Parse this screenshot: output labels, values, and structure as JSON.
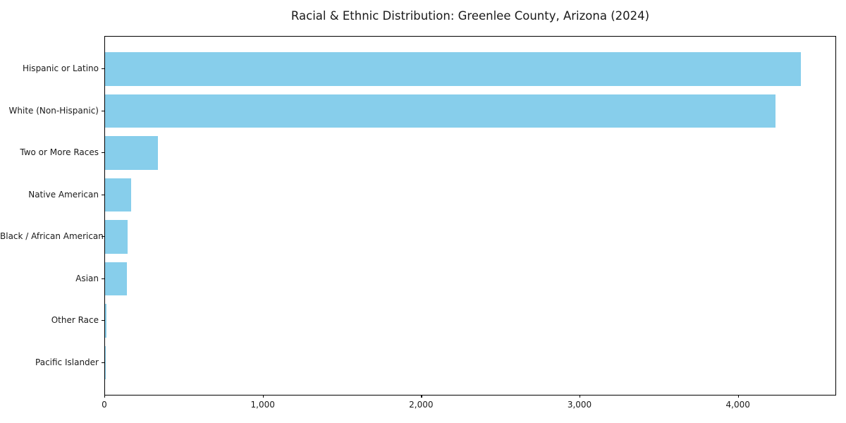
{
  "chart_data": {
    "type": "bar",
    "orientation": "horizontal",
    "title": "Racial & Ethnic Distribution: Greenlee County, Arizona (2024)",
    "categories": [
      "Hispanic or Latino",
      "White (Non-Hispanic)",
      "Two or More Races",
      "Native American",
      "Black / African American",
      "Asian",
      "Other Race",
      "Pacific Islander"
    ],
    "values": [
      4400,
      4240,
      335,
      167,
      141,
      137,
      8,
      2
    ],
    "xlabel": "",
    "ylabel": "",
    "xlim": [
      0,
      4620
    ],
    "xticks": [
      0,
      1000,
      2000,
      3000,
      4000
    ],
    "xtick_labels": [
      "0",
      "1,000",
      "2,000",
      "3,000",
      "4,000"
    ],
    "bar_color": "#87CEEB",
    "grid": false,
    "legend": null,
    "background_color": "#ffffff",
    "spine_color": "#000000",
    "text_color": "#1a1a1a"
  }
}
